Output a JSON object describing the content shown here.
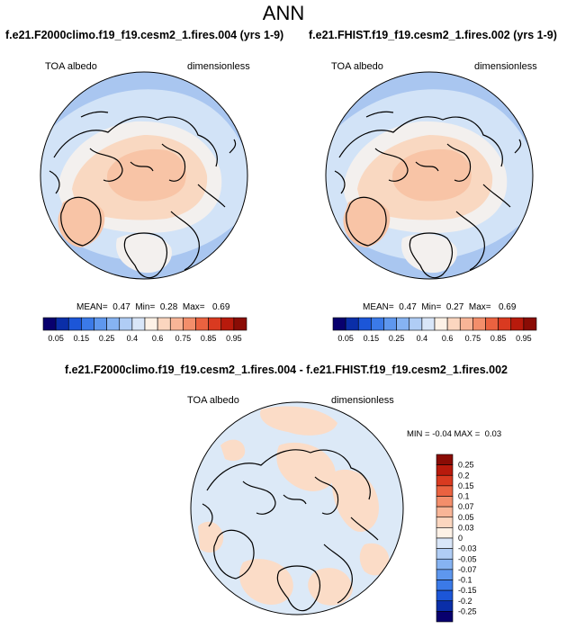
{
  "main_title": "ANN",
  "panels": [
    {
      "title": "f.e21.F2000climo.f19_f19.cesm2_1.fires.004 (yrs 1-9)",
      "variable": "TOA albedo",
      "units": "dimensionless",
      "stats": {
        "mean_label": "MEAN=",
        "mean": "0.47",
        "min_label": "Min=",
        "min": "0.28",
        "max_label": "Max=",
        "max": "0.69"
      }
    },
    {
      "title": "f.e21.FHIST.f19_f19.cesm2_1.fires.002 (yrs 1-9)",
      "variable": "TOA albedo",
      "units": "dimensionless",
      "stats": {
        "mean_label": "MEAN=",
        "mean": "0.47",
        "min_label": "Min=",
        "min": "0.27",
        "max_label": "Max=",
        "max": "0.69"
      }
    }
  ],
  "abs_colorbar": {
    "labels": [
      "0.05",
      "0.15",
      "0.25",
      "0.4",
      "0.6",
      "0.75",
      "0.85",
      "0.95"
    ],
    "colors": [
      "#08006e",
      "#0a2ea8",
      "#1c56d8",
      "#3b7ae8",
      "#5e97ee",
      "#86b3f2",
      "#b0cdf5",
      "#d9e6f8",
      "#fdf1e6",
      "#fbd6bf",
      "#f8b597",
      "#f38e6b",
      "#ea6240",
      "#d93a20",
      "#b81a0c",
      "#8a0c05"
    ]
  },
  "diff_panel": {
    "title": "f.e21.F2000climo.f19_f19.cesm2_1.fires.004 - f.e21.FHIST.f19_f19.cesm2_1.fires.002",
    "variable": "TOA albedo",
    "units": "dimensionless",
    "stats": {
      "min_label": "MIN =",
      "min": "-0.04",
      "max_label": "MAX =",
      "max": "0.03"
    }
  },
  "diff_colorbar": {
    "labels": [
      "0.25",
      "0.2",
      "0.15",
      "0.1",
      "0.07",
      "0.05",
      "0.03",
      "0",
      "-0.03",
      "-0.05",
      "-0.07",
      "-0.1",
      "-0.15",
      "-0.2",
      "-0.25"
    ],
    "colors": [
      "#8a0c05",
      "#b81a0c",
      "#d93a20",
      "#ea6240",
      "#f38e6b",
      "#f8b597",
      "#fbd6bf",
      "#fdf1e6",
      "#d9e6f8",
      "#b0cdf5",
      "#86b3f2",
      "#5e97ee",
      "#3b7ae8",
      "#1c56d8",
      "#0a2ea8",
      "#08006e"
    ]
  },
  "map_colors": {
    "ocean_mid": "#a9c6f0",
    "ocean_light": "#d2e3f7",
    "near_white": "#f3f0ee",
    "peach": "#f9d8c1",
    "salmon": "#f8c4a6",
    "diff_base": "#dce9f7",
    "diff_peach": "#fbdcc7",
    "coast": "#000000"
  }
}
